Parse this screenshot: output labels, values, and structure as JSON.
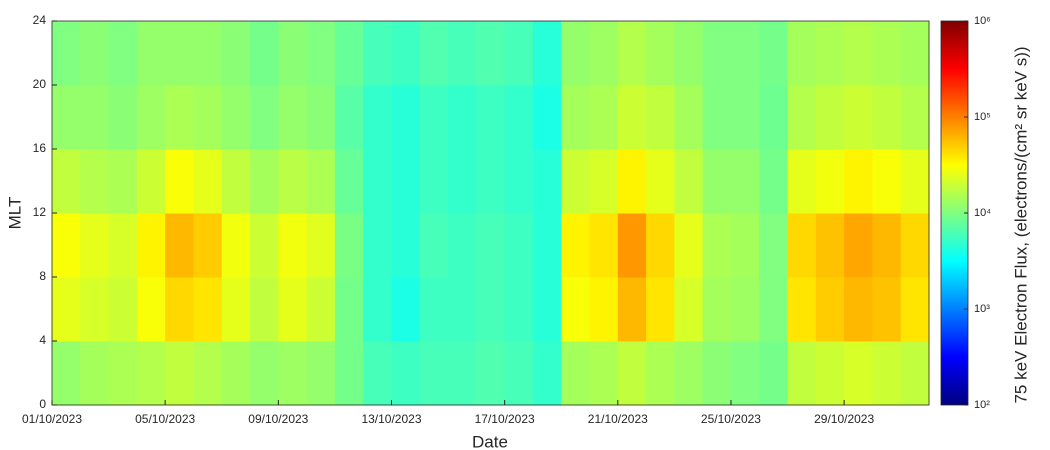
{
  "chart_data": {
    "type": "heatmap",
    "x_label": "Date",
    "y_label": "MLT",
    "colorbar_label": "75 keV Electron Flux, (electrons/(cm² sr keV s))",
    "colormap": "jet",
    "color_log_scale": true,
    "clim": [
      100,
      1000000
    ],
    "cticks": [
      {
        "value": 100,
        "label": "10²"
      },
      {
        "value": 1000,
        "label": "10³"
      },
      {
        "value": 10000,
        "label": "10⁴"
      },
      {
        "value": 100000,
        "label": "10⁵"
      },
      {
        "value": 1000000,
        "label": "10⁶"
      }
    ],
    "xlim": [
      "01/10/2023",
      "01/11/2023"
    ],
    "xticks": [
      "01/10/2023",
      "05/10/2023",
      "09/10/2023",
      "13/10/2023",
      "17/10/2023",
      "21/10/2023",
      "25/10/2023",
      "29/10/2023"
    ],
    "ylim": [
      0,
      24
    ],
    "yticks": [
      0,
      4,
      8,
      12,
      16,
      20,
      24
    ],
    "x": [
      "01/10/2023",
      "02/10/2023",
      "03/10/2023",
      "04/10/2023",
      "05/10/2023",
      "06/10/2023",
      "07/10/2023",
      "08/10/2023",
      "09/10/2023",
      "10/10/2023",
      "11/10/2023",
      "12/10/2023",
      "13/10/2023",
      "14/10/2023",
      "15/10/2023",
      "16/10/2023",
      "17/10/2023",
      "18/10/2023",
      "19/10/2023",
      "20/10/2023",
      "21/10/2023",
      "22/10/2023",
      "23/10/2023",
      "24/10/2023",
      "25/10/2023",
      "26/10/2023",
      "27/10/2023",
      "28/10/2023",
      "29/10/2023",
      "30/10/2023",
      "31/10/2023"
    ],
    "y_bins": [
      0,
      4,
      8,
      12,
      16,
      20,
      24
    ],
    "z": [
      [
        12000,
        25000,
        30000,
        18000,
        12000,
        10000
      ],
      [
        14000,
        22000,
        25000,
        16000,
        12000,
        11000
      ],
      [
        15000,
        20000,
        22000,
        15000,
        11000,
        10000
      ],
      [
        16000,
        30000,
        35000,
        20000,
        13000,
        12000
      ],
      [
        18000,
        45000,
        60000,
        30000,
        15000,
        12000
      ],
      [
        16000,
        40000,
        50000,
        25000,
        14000,
        12000
      ],
      [
        14000,
        25000,
        28000,
        18000,
        12000,
        11000
      ],
      [
        12000,
        18000,
        20000,
        14000,
        10000,
        9000
      ],
      [
        13000,
        25000,
        28000,
        17000,
        12000,
        11000
      ],
      [
        12000,
        20000,
        24000,
        15000,
        11000,
        10000
      ],
      [
        9000,
        9000,
        9500,
        8000,
        7000,
        8000
      ],
      [
        6000,
        5000,
        5000,
        5000,
        5000,
        6000
      ],
      [
        5500,
        4000,
        4500,
        4500,
        4500,
        5500
      ],
      [
        6000,
        5500,
        6000,
        5500,
        5500,
        6500
      ],
      [
        6000,
        5500,
        5500,
        5000,
        5000,
        6000
      ],
      [
        6500,
        6000,
        6000,
        5500,
        5500,
        6500
      ],
      [
        6000,
        5500,
        5500,
        5000,
        5000,
        6000
      ],
      [
        5000,
        4500,
        4500,
        4500,
        4000,
        4500
      ],
      [
        14000,
        30000,
        35000,
        20000,
        14000,
        12000
      ],
      [
        15000,
        35000,
        40000,
        22000,
        15000,
        13000
      ],
      [
        18000,
        60000,
        80000,
        35000,
        20000,
        16000
      ],
      [
        15000,
        40000,
        45000,
        25000,
        18000,
        14000
      ],
      [
        13000,
        22000,
        25000,
        18000,
        14000,
        12000
      ],
      [
        11000,
        14000,
        15000,
        12000,
        10000,
        10000
      ],
      [
        10000,
        13000,
        14000,
        12000,
        10000,
        10000
      ],
      [
        9000,
        10000,
        10000,
        9000,
        8500,
        9000
      ],
      [
        18000,
        40000,
        45000,
        25000,
        16000,
        14000
      ],
      [
        20000,
        50000,
        55000,
        28000,
        18000,
        15000
      ],
      [
        22000,
        60000,
        70000,
        35000,
        20000,
        16000
      ],
      [
        20000,
        55000,
        60000,
        30000,
        18000,
        15000
      ],
      [
        18000,
        40000,
        45000,
        25000,
        16000,
        14000
      ]
    ]
  }
}
